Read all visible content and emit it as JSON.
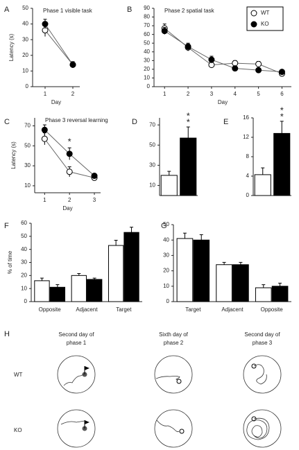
{
  "chart_data": [
    {
      "panel": "A",
      "type": "line",
      "title": "Phase 1 visible task",
      "x_label": "Day",
      "y_label": "Latency (s)",
      "x": [
        1,
        2
      ],
      "xlim": [
        0.55,
        2.25
      ],
      "xticks": [
        1,
        2
      ],
      "ylim": [
        0,
        50
      ],
      "yticks": [
        0,
        10,
        20,
        30,
        40,
        50
      ],
      "series": [
        {
          "color": "#ffffff",
          "values": [
            36,
            14
          ],
          "errors": [
            4,
            2
          ]
        },
        {
          "color": "#000000",
          "values": [
            40,
            14
          ],
          "errors": [
            3,
            1
          ]
        }
      ]
    },
    {
      "panel": "B",
      "type": "line",
      "title": "Phase 2 spatial task",
      "x_label": "Day",
      "legend": "upper right",
      "x": [
        1,
        2,
        3,
        4,
        5,
        6
      ],
      "xlim": [
        0.55,
        6.4
      ],
      "xticks": [
        1,
        2,
        3,
        4,
        5,
        6
      ],
      "ylim": [
        0,
        90
      ],
      "yticks": [
        0,
        10,
        20,
        30,
        40,
        50,
        60,
        70,
        80,
        90
      ],
      "series": [
        {
          "name": "WT",
          "color": "#ffffff",
          "values": [
            67,
            45,
            25,
            27,
            26,
            15
          ],
          "errors": [
            5,
            4,
            3,
            3,
            3,
            2
          ]
        },
        {
          "name": "KO",
          "color": "#000000",
          "values": [
            64,
            46,
            31,
            21,
            19,
            17
          ],
          "errors": [
            4,
            4,
            4,
            2,
            2,
            2
          ]
        }
      ]
    },
    {
      "panel": "C",
      "type": "line",
      "title": "Phase 3 reversal learning",
      "x_label": "Day",
      "y_label": "Latency (s)",
      "x": [
        1,
        2,
        3
      ],
      "xlim": [
        0.6,
        3.25
      ],
      "xticks": [
        1,
        2,
        3
      ],
      "ylim": [
        3,
        78
      ],
      "yticks": [
        10,
        30,
        50,
        70
      ],
      "series": [
        {
          "color": "#ffffff",
          "values": [
            57,
            24,
            18
          ],
          "errors": [
            6,
            5,
            2
          ]
        },
        {
          "color": "#000000",
          "values": [
            66,
            42,
            20
          ],
          "errors": [
            5,
            6,
            2
          ]
        }
      ],
      "annotations": [
        {
          "text": "*",
          "x": 2
        }
      ]
    },
    {
      "panel": "D",
      "type": "bar",
      "values": [
        20,
        57
      ],
      "errors": [
        4,
        11
      ],
      "colors": [
        "#ffffff",
        "#000000"
      ],
      "ylim": [
        0,
        77
      ],
      "yticks": [
        10,
        30,
        50,
        70
      ],
      "annotations": [
        "*",
        "*"
      ]
    },
    {
      "panel": "E",
      "type": "bar",
      "values": [
        4.3,
        12.8
      ],
      "errors": [
        1.4,
        2.5
      ],
      "colors": [
        "#ffffff",
        "#000000"
      ],
      "ylim": [
        0,
        16
      ],
      "yticks": [
        0,
        4,
        8,
        12,
        16
      ],
      "annotations": [
        "*",
        "*"
      ]
    },
    {
      "panel": "F",
      "type": "grouped_bar",
      "y_label": "% of time",
      "categories": [
        "Opposite",
        "Adjacent",
        "Target"
      ],
      "ylim": [
        0,
        60
      ],
      "yticks": [
        0,
        10,
        20,
        30,
        40,
        50,
        60
      ],
      "series": [
        {
          "color": "#ffffff",
          "values": [
            16,
            20,
            43
          ],
          "errors": [
            2,
            1.5,
            4
          ]
        },
        {
          "color": "#000000",
          "values": [
            11,
            17,
            53
          ],
          "errors": [
            2,
            1,
            4
          ]
        }
      ]
    },
    {
      "panel": "G",
      "type": "grouped_bar",
      "categories": [
        "Target",
        "Adjacent",
        "Opposite"
      ],
      "ylim": [
        0,
        50
      ],
      "yticks": [
        0,
        10,
        20,
        30,
        40,
        50
      ],
      "series": [
        {
          "color": "#ffffff",
          "values": [
            41,
            24,
            9
          ],
          "errors": [
            3.5,
            1.5,
            2
          ]
        },
        {
          "color": "#000000",
          "values": [
            40,
            24,
            10
          ],
          "errors": [
            3.5,
            1.5,
            2
          ]
        }
      ]
    }
  ],
  "track_panel": {
    "panel": "H",
    "columns": [
      [
        "Second day of",
        "phase 1"
      ],
      [
        "Sixth day of",
        "phase 2"
      ],
      [
        "Second day of",
        "phase 3"
      ]
    ],
    "rows": [
      "WT",
      "KO"
    ]
  }
}
